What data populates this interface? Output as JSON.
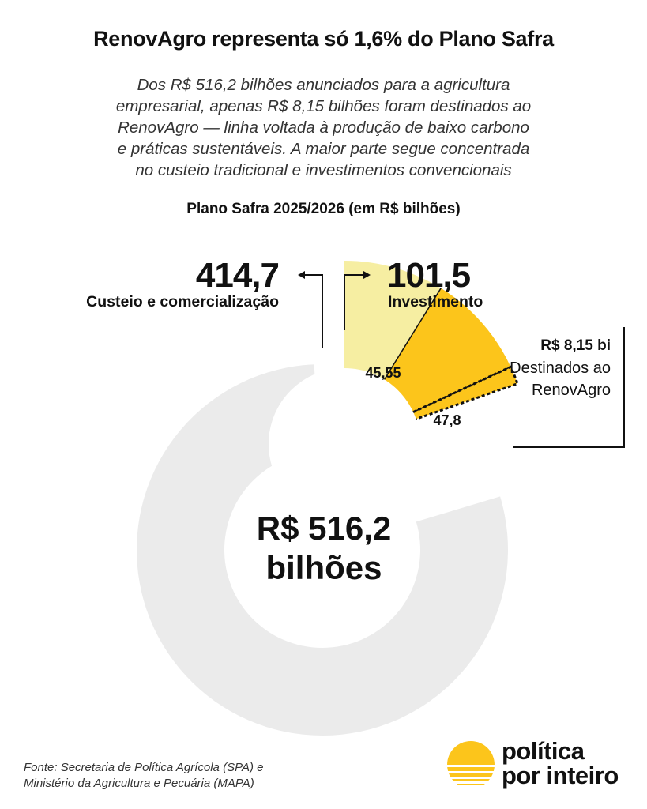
{
  "header": {
    "title": "RenovAgro representa só 1,6% do Plano Safra",
    "subtitle_lines": [
      "Dos R$ 516,2 bilhões anunciados para a agricultura",
      "empresarial, apenas R$ 8,15 bilhões foram destinados ao",
      "RenovAgro — linha voltada à produção de baixo carbono",
      "e práticas sustentáveis. A maior parte segue concentrada",
      "no custeio tradicional e investimentos convencionais"
    ]
  },
  "chart_data": {
    "type": "pie",
    "title": "Plano Safra 2025/2026 (em R$ bilhões)",
    "total_label_lines": [
      "R$ 516,2",
      "bilhões"
    ],
    "categories": [
      {
        "label": "Custeio e comercialização",
        "value_label": "414,7",
        "value": 414.7
      },
      {
        "label": "Investimento",
        "value_label": "101,5",
        "value": 101.5
      }
    ],
    "investment_breakdown": [
      {
        "value_label": "45,55",
        "value": 45.55
      },
      {
        "value_label": "47,8",
        "value": 47.8
      },
      {
        "value": 8.15
      }
    ],
    "renovagro": {
      "value_label": "R$ 8,15 bi",
      "description_lines": [
        "Destinados ao",
        "RenovAgro"
      ]
    },
    "colors": {
      "custeio": "#ebebeb",
      "investimento_a": "#f6eea2",
      "investimento_b": "#fcc51b",
      "renovagro_outline": "#111111"
    }
  },
  "footer": {
    "source_lines": [
      "Fonte: Secretaria de Política Agrícola (SPA) e",
      "Ministério da Agricultura e Pecuária (MAPA)"
    ],
    "logo_lines": [
      "política",
      "por inteiro"
    ],
    "logo_color": "#fcc51b"
  }
}
